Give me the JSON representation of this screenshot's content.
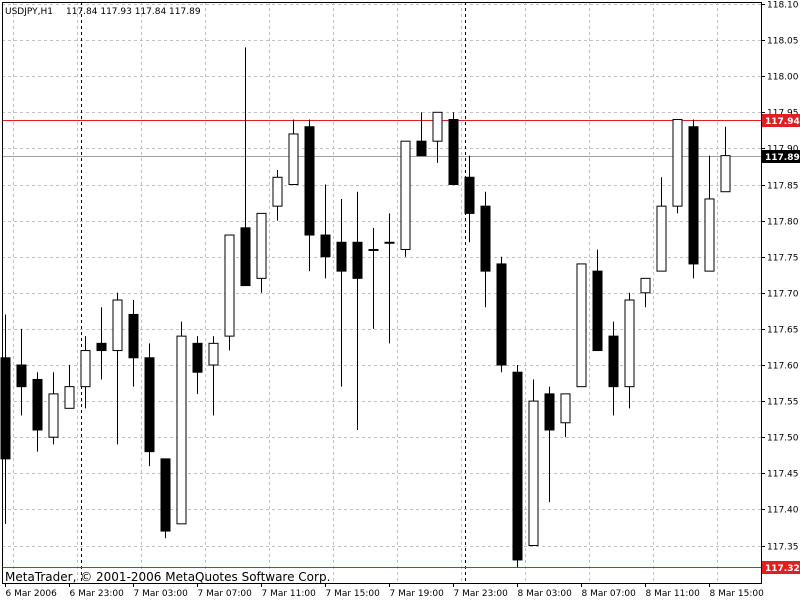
{
  "header": {
    "symbol": "USDJPY,H1",
    "ohlc": "117.84 117.93 117.84 117.89"
  },
  "copyright": "MetaTrader, © 2001-2006 MetaQuotes Software Corp.",
  "colors": {
    "background": "#ffffff",
    "grid": "#c0c0c0",
    "axis": "#000000",
    "bull_fill": "#ffffff",
    "bear_fill": "#000000",
    "level_line": "#e02020",
    "bid_line": "#a0a0a0",
    "separator": "#000000"
  },
  "chart_data": {
    "type": "candlestick",
    "symbol": "USDJPY",
    "timeframe": "H1",
    "y_range": [
      117.3,
      118.1
    ],
    "y_ticks": [
      "118.10",
      "118.05",
      "118.00",
      "117.95",
      "117.90",
      "117.85",
      "117.80",
      "117.75",
      "117.70",
      "117.65",
      "117.60",
      "117.55",
      "117.50",
      "117.45",
      "117.40",
      "117.35"
    ],
    "x_labels": [
      "6 Mar 2006",
      "6 Mar 23:00",
      "7 Mar 03:00",
      "7 Mar 07:00",
      "7 Mar 11:00",
      "7 Mar 15:00",
      "7 Mar 19:00",
      "7 Mar 23:00",
      "8 Mar 03:00",
      "8 Mar 07:00",
      "8 Mar 11:00",
      "8 Mar 15:00"
    ],
    "x_label_slots": [
      0,
      4,
      8,
      12,
      16,
      20,
      24,
      28,
      32,
      36,
      40,
      44
    ],
    "day_separator_slots": [
      4.75,
      28.75
    ],
    "levels": [
      {
        "price": 117.94,
        "label": "117.94",
        "kind": "red"
      },
      {
        "price": 117.32,
        "label": "117.32",
        "kind": "red"
      }
    ],
    "bid": {
      "price": 117.89,
      "label": "117.89"
    },
    "candles": [
      {
        "o": 117.61,
        "h": 117.67,
        "l": 117.38,
        "c": 117.47
      },
      {
        "o": 117.6,
        "h": 117.65,
        "l": 117.53,
        "c": 117.57
      },
      {
        "o": 117.58,
        "h": 117.59,
        "l": 117.48,
        "c": 117.51
      },
      {
        "o": 117.5,
        "h": 117.59,
        "l": 117.49,
        "c": 117.56
      },
      {
        "o": 117.54,
        "h": 117.6,
        "l": 117.54,
        "c": 117.57
      },
      {
        "o": 117.57,
        "h": 117.64,
        "l": 117.54,
        "c": 117.62
      },
      {
        "o": 117.63,
        "h": 117.68,
        "l": 117.58,
        "c": 117.62
      },
      {
        "o": 117.62,
        "h": 117.7,
        "l": 117.49,
        "c": 117.69
      },
      {
        "o": 117.67,
        "h": 117.69,
        "l": 117.57,
        "c": 117.61
      },
      {
        "o": 117.61,
        "h": 117.63,
        "l": 117.46,
        "c": 117.48
      },
      {
        "o": 117.47,
        "h": 117.47,
        "l": 117.36,
        "c": 117.37
      },
      {
        "o": 117.38,
        "h": 117.66,
        "l": 117.38,
        "c": 117.64
      },
      {
        "o": 117.63,
        "h": 117.64,
        "l": 117.56,
        "c": 117.59
      },
      {
        "o": 117.6,
        "h": 117.64,
        "l": 117.53,
        "c": 117.63
      },
      {
        "o": 117.64,
        "h": 117.78,
        "l": 117.62,
        "c": 117.78
      },
      {
        "o": 117.79,
        "h": 118.04,
        "l": 117.71,
        "c": 117.71
      },
      {
        "o": 117.72,
        "h": 117.81,
        "l": 117.7,
        "c": 117.81
      },
      {
        "o": 117.82,
        "h": 117.87,
        "l": 117.8,
        "c": 117.86
      },
      {
        "o": 117.85,
        "h": 117.94,
        "l": 117.85,
        "c": 117.92
      },
      {
        "o": 117.93,
        "h": 117.94,
        "l": 117.73,
        "c": 117.78
      },
      {
        "o": 117.78,
        "h": 117.85,
        "l": 117.72,
        "c": 117.75
      },
      {
        "o": 117.77,
        "h": 117.83,
        "l": 117.57,
        "c": 117.73
      },
      {
        "o": 117.77,
        "h": 117.84,
        "l": 117.51,
        "c": 117.72
      },
      {
        "o": 117.76,
        "h": 117.79,
        "l": 117.65,
        "c": 117.76
      },
      {
        "o": 117.77,
        "h": 117.81,
        "l": 117.63,
        "c": 117.77
      },
      {
        "o": 117.76,
        "h": 117.91,
        "l": 117.75,
        "c": 117.91
      },
      {
        "o": 117.91,
        "h": 117.95,
        "l": 117.89,
        "c": 117.89
      },
      {
        "o": 117.91,
        "h": 117.95,
        "l": 117.88,
        "c": 117.95
      },
      {
        "o": 117.94,
        "h": 117.95,
        "l": 117.85,
        "c": 117.85
      },
      {
        "o": 117.86,
        "h": 117.89,
        "l": 117.77,
        "c": 117.81
      },
      {
        "o": 117.82,
        "h": 117.84,
        "l": 117.68,
        "c": 117.73
      },
      {
        "o": 117.74,
        "h": 117.75,
        "l": 117.59,
        "c": 117.6
      },
      {
        "o": 117.59,
        "h": 117.6,
        "l": 117.32,
        "c": 117.33
      },
      {
        "o": 117.35,
        "h": 117.58,
        "l": 117.35,
        "c": 117.55
      },
      {
        "o": 117.56,
        "h": 117.57,
        "l": 117.41,
        "c": 117.51
      },
      {
        "o": 117.52,
        "h": 117.56,
        "l": 117.5,
        "c": 117.56
      },
      {
        "o": 117.57,
        "h": 117.74,
        "l": 117.57,
        "c": 117.74
      },
      {
        "o": 117.73,
        "h": 117.76,
        "l": 117.62,
        "c": 117.62
      },
      {
        "o": 117.64,
        "h": 117.66,
        "l": 117.53,
        "c": 117.57
      },
      {
        "o": 117.57,
        "h": 117.7,
        "l": 117.54,
        "c": 117.69
      },
      {
        "o": 117.7,
        "h": 117.72,
        "l": 117.68,
        "c": 117.72
      },
      {
        "o": 117.73,
        "h": 117.86,
        "l": 117.73,
        "c": 117.82
      },
      {
        "o": 117.82,
        "h": 117.94,
        "l": 117.81,
        "c": 117.94
      },
      {
        "o": 117.93,
        "h": 117.94,
        "l": 117.72,
        "c": 117.74
      },
      {
        "o": 117.73,
        "h": 117.89,
        "l": 117.73,
        "c": 117.83
      },
      {
        "o": 117.84,
        "h": 117.93,
        "l": 117.84,
        "c": 117.89
      }
    ]
  }
}
